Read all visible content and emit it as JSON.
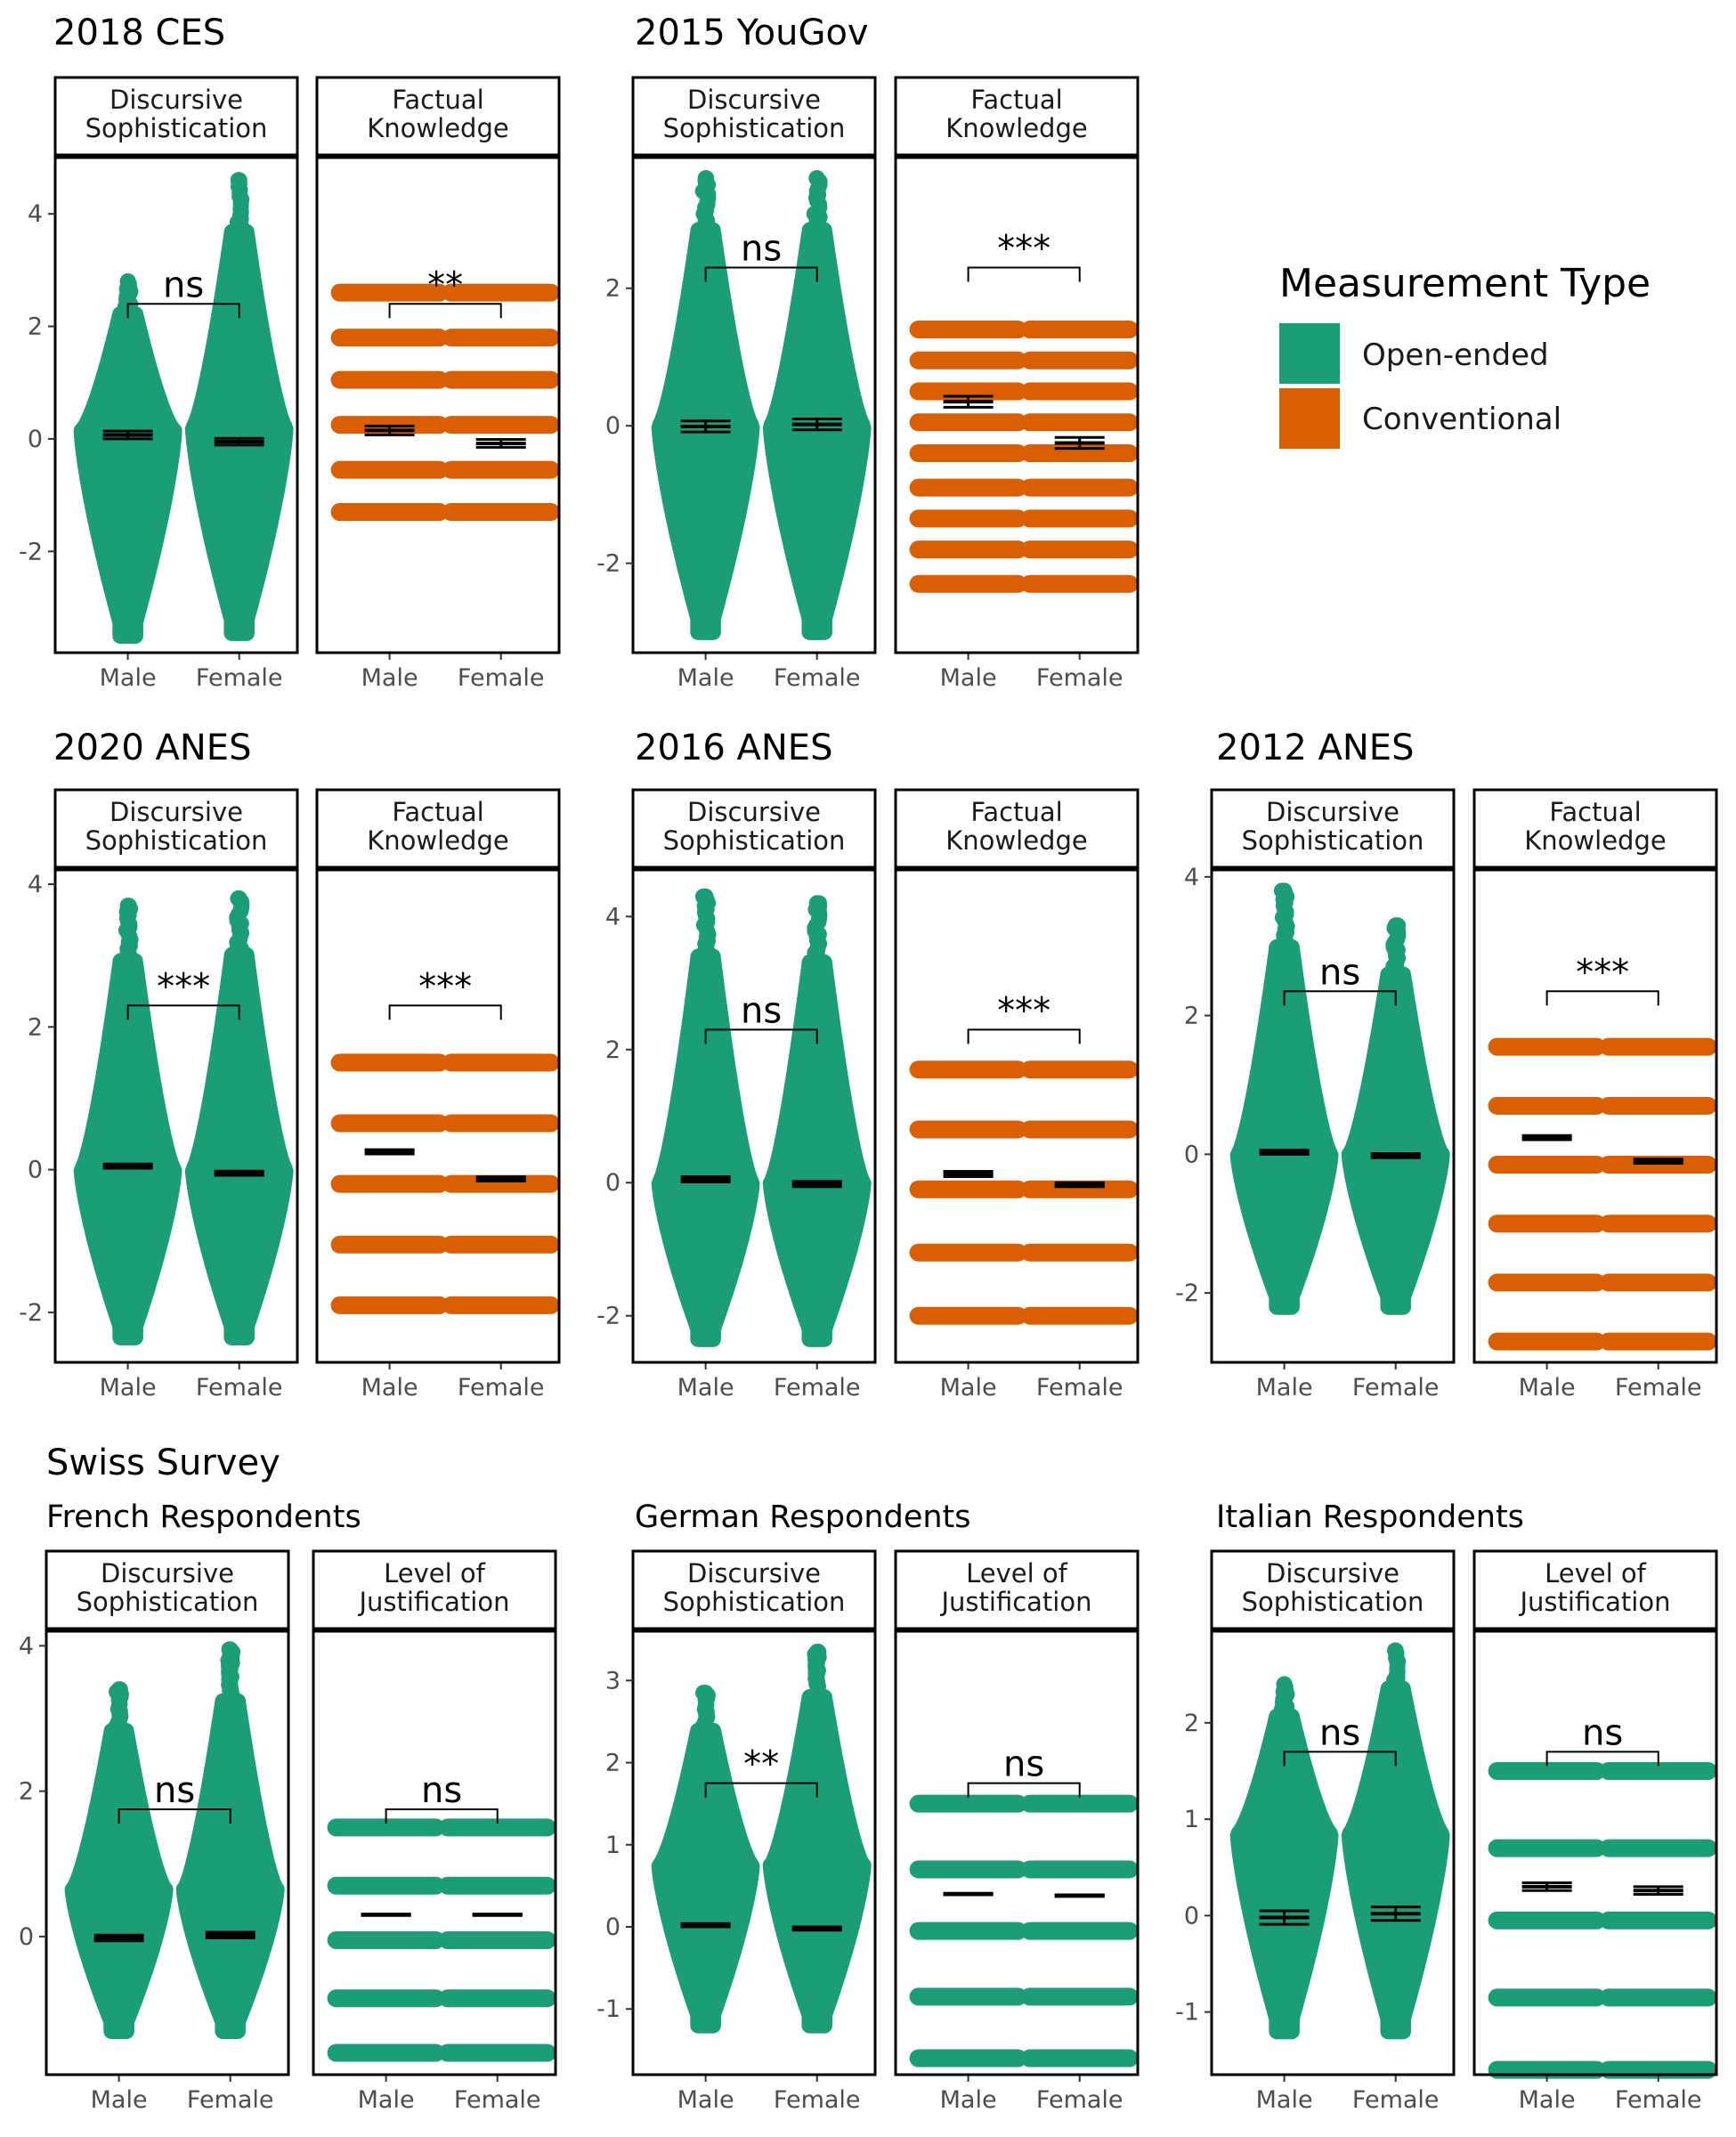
{
  "titles": {
    "ces2018": "2018 CES",
    "yougov2015": "2015 YouGov",
    "anes2020": "2020 ANES",
    "anes2016": "2016 ANES",
    "anes2012": "2012 ANES",
    "swiss": "Swiss Survey",
    "french": "French Respondents",
    "german": "German Respondents",
    "italian": "Italian Respondents"
  },
  "legend": {
    "title": "Measurement Type",
    "items": [
      {
        "label": "Open-ended",
        "color": "#1b9e77"
      },
      {
        "label": "Conventional",
        "color": "#d95f02"
      }
    ]
  },
  "chart_data": [
    {
      "id": "ces2018",
      "type": "scatter",
      "subtype": "beeswarm",
      "group": "2018 CES",
      "ylim": [
        -3.8,
        5.0
      ],
      "yticks": [
        -2,
        0,
        2,
        4
      ],
      "panels": [
        {
          "strip": [
            "Discursive",
            "Sophistication"
          ],
          "color": "#1b9e77",
          "discrete": false,
          "categories": [
            "Male",
            "Female"
          ],
          "min": [
            -3.5,
            -3.45
          ],
          "max": [
            2.8,
            4.6
          ],
          "center": [
            0.15,
            0.2
          ],
          "means": [
            0.07,
            -0.05
          ],
          "se": [
            0.07,
            0.06
          ],
          "sig": "ns",
          "bracket_y": 2.4
        },
        {
          "strip": [
            "Factual",
            "Knowledge"
          ],
          "color": "#d95f02",
          "discrete": true,
          "categories": [
            "Male",
            "Female"
          ],
          "levels": [
            [
              -1.3,
              -0.55,
              0.25,
              1.05,
              1.8,
              2.6
            ],
            [
              -1.3,
              -0.55,
              0.25,
              1.05,
              1.8,
              2.6
            ]
          ],
          "means": [
            0.15,
            -0.08
          ],
          "se": [
            0.08,
            0.07
          ],
          "sig": "**",
          "bracket_y": 2.4
        }
      ]
    },
    {
      "id": "yougov2015",
      "type": "scatter",
      "subtype": "beeswarm",
      "group": "2015 YouGov",
      "ylim": [
        -3.3,
        3.9
      ],
      "yticks": [
        -2,
        0,
        2
      ],
      "panels": [
        {
          "strip": [
            "Discursive",
            "Sophistication"
          ],
          "color": "#1b9e77",
          "discrete": false,
          "categories": [
            "Male",
            "Female"
          ],
          "min": [
            -3.0,
            -3.0
          ],
          "max": [
            3.6,
            3.6
          ],
          "center": [
            0.0,
            0.0
          ],
          "means": [
            -0.01,
            0.02
          ],
          "se": [
            0.08,
            0.08
          ],
          "sig": "ns",
          "bracket_y": 2.3
        },
        {
          "strip": [
            "Factual",
            "Knowledge"
          ],
          "color": "#d95f02",
          "discrete": true,
          "categories": [
            "Male",
            "Female"
          ],
          "levels": [
            [
              -2.3,
              -1.8,
              -1.35,
              -0.9,
              -0.4,
              0.05,
              0.5,
              0.95,
              1.4
            ],
            [
              -2.3,
              -1.8,
              -1.35,
              -0.9,
              -0.4,
              0.05,
              0.5,
              0.95,
              1.4
            ]
          ],
          "means": [
            0.35,
            -0.25
          ],
          "se": [
            0.08,
            0.08
          ],
          "sig": "***",
          "bracket_y": 2.3
        }
      ]
    },
    {
      "id": "anes2020",
      "type": "scatter",
      "subtype": "beeswarm",
      "group": "2020 ANES",
      "ylim": [
        -2.7,
        4.2
      ],
      "yticks": [
        -2,
        0,
        2,
        4
      ],
      "panels": [
        {
          "strip": [
            "Discursive",
            "Sophistication"
          ],
          "color": "#1b9e77",
          "discrete": false,
          "categories": [
            "Male",
            "Female"
          ],
          "min": [
            -2.35,
            -2.35
          ],
          "max": [
            3.7,
            3.8
          ],
          "center": [
            0.0,
            0.0
          ],
          "means": [
            0.05,
            -0.05
          ],
          "se": [
            0.03,
            0.03
          ],
          "sig": "***",
          "bracket_y": 2.3
        },
        {
          "strip": [
            "Factual",
            "Knowledge"
          ],
          "color": "#d95f02",
          "discrete": true,
          "categories": [
            "Male",
            "Female"
          ],
          "levels": [
            [
              -1.9,
              -1.05,
              -0.2,
              0.65,
              1.5
            ],
            [
              -1.9,
              -1.05,
              -0.2,
              0.65,
              1.5
            ]
          ],
          "means": [
            0.25,
            -0.13
          ],
          "se": [
            0.03,
            0.03
          ],
          "sig": "***",
          "bracket_y": 2.3
        }
      ]
    },
    {
      "id": "anes2016",
      "type": "scatter",
      "subtype": "beeswarm",
      "group": "2016 ANES",
      "ylim": [
        -2.7,
        4.7
      ],
      "yticks": [
        -2,
        0,
        2,
        4
      ],
      "panels": [
        {
          "strip": [
            "Discursive",
            "Sophistication"
          ],
          "color": "#1b9e77",
          "discrete": false,
          "categories": [
            "Male",
            "Female"
          ],
          "min": [
            -2.35,
            -2.35
          ],
          "max": [
            4.3,
            4.2
          ],
          "center": [
            0.0,
            0.0
          ],
          "means": [
            0.05,
            -0.02
          ],
          "se": [
            0.04,
            0.04
          ],
          "sig": "ns",
          "bracket_y": 2.3
        },
        {
          "strip": [
            "Factual",
            "Knowledge"
          ],
          "color": "#d95f02",
          "discrete": true,
          "categories": [
            "Male",
            "Female"
          ],
          "levels": [
            [
              -2.0,
              -1.05,
              -0.1,
              0.8,
              1.7
            ],
            [
              -2.0,
              -1.05,
              -0.1,
              0.8,
              1.7
            ]
          ],
          "means": [
            0.13,
            -0.03
          ],
          "se": [
            0.04,
            0.03
          ],
          "sig": "***",
          "bracket_y": 2.3
        }
      ]
    },
    {
      "id": "anes2012",
      "type": "scatter",
      "subtype": "beeswarm",
      "group": "2012 ANES",
      "ylim": [
        -3.0,
        4.1
      ],
      "yticks": [
        -2,
        0,
        2,
        4
      ],
      "panels": [
        {
          "strip": [
            "Discursive",
            "Sophistication"
          ],
          "color": "#1b9e77",
          "discrete": false,
          "categories": [
            "Male",
            "Female"
          ],
          "min": [
            -2.2,
            -2.2
          ],
          "max": [
            3.8,
            3.3
          ],
          "center": [
            0.0,
            0.0
          ],
          "means": [
            0.03,
            -0.02
          ],
          "se": [
            0.03,
            0.03
          ],
          "sig": "ns",
          "bracket_y": 2.35
        },
        {
          "strip": [
            "Factual",
            "Knowledge"
          ],
          "color": "#d95f02",
          "discrete": true,
          "categories": [
            "Male",
            "Female"
          ],
          "levels": [
            [
              -2.7,
              -1.85,
              -1.0,
              -0.15,
              0.7,
              1.55
            ],
            [
              -2.7,
              -1.85,
              -1.0,
              -0.15,
              0.7,
              1.55
            ]
          ],
          "means": [
            0.24,
            -0.1
          ],
          "se": [
            0.03,
            0.03
          ],
          "sig": "***",
          "bracket_y": 2.35
        }
      ]
    },
    {
      "id": "french",
      "type": "scatter",
      "subtype": "beeswarm",
      "group": "Swiss Survey",
      "subgroup": "French Respondents",
      "ylim": [
        -1.9,
        4.2
      ],
      "yticks": [
        0,
        2,
        4
      ],
      "panels": [
        {
          "strip": [
            "Discursive",
            "Sophistication"
          ],
          "color": "#1b9e77",
          "discrete": false,
          "categories": [
            "Male",
            "Female"
          ],
          "min": [
            -1.3,
            -1.3
          ],
          "max": [
            3.4,
            3.95
          ],
          "center": [
            0.65,
            0.65
          ],
          "means": [
            -0.02,
            0.02
          ],
          "se": [
            0.04,
            0.04
          ],
          "sig": "ns",
          "bracket_y": 1.75
        },
        {
          "strip": [
            "Level of",
            "Justification"
          ],
          "color": "#1b9e77",
          "discrete": true,
          "categories": [
            "Male",
            "Female"
          ],
          "levels": [
            [
              -1.6,
              -0.85,
              -0.05,
              0.7,
              1.5
            ],
            [
              -1.6,
              -0.85,
              -0.05,
              0.7,
              1.5
            ]
          ],
          "means": [
            0.3,
            0.3
          ],
          "se": [
            0.01,
            0.01
          ],
          "sig": "ns",
          "bracket_y": 1.75
        }
      ]
    },
    {
      "id": "german",
      "type": "scatter",
      "subtype": "beeswarm",
      "group": "Swiss Survey",
      "subgroup": "German Respondents",
      "ylim": [
        -1.8,
        3.6
      ],
      "yticks": [
        -1,
        0,
        1,
        2,
        3
      ],
      "panels": [
        {
          "strip": [
            "Discursive",
            "Sophistication"
          ],
          "color": "#1b9e77",
          "discrete": false,
          "categories": [
            "Male",
            "Female"
          ],
          "min": [
            -1.2,
            -1.2
          ],
          "max": [
            2.85,
            3.35
          ],
          "center": [
            0.75,
            0.75
          ],
          "means": [
            0.02,
            -0.02
          ],
          "se": [
            0.02,
            0.02
          ],
          "sig": "**",
          "bracket_y": 1.75
        },
        {
          "strip": [
            "Level of",
            "Justification"
          ],
          "color": "#1b9e77",
          "discrete": true,
          "categories": [
            "Male",
            "Female"
          ],
          "levels": [
            [
              -1.6,
              -0.85,
              -0.05,
              0.7,
              1.5
            ],
            [
              -1.6,
              -0.85,
              -0.05,
              0.7,
              1.5
            ]
          ],
          "means": [
            0.4,
            0.38
          ],
          "se": [
            0.01,
            0.01
          ],
          "sig": "ns",
          "bracket_y": 1.75
        }
      ]
    },
    {
      "id": "italian",
      "type": "scatter",
      "subtype": "beeswarm",
      "group": "Swiss Survey",
      "subgroup": "Italian Respondents",
      "ylim": [
        -1.65,
        2.95
      ],
      "yticks": [
        -1,
        0,
        1,
        2
      ],
      "panels": [
        {
          "strip": [
            "Discursive",
            "Sophistication"
          ],
          "color": "#1b9e77",
          "discrete": false,
          "categories": [
            "Male",
            "Female"
          ],
          "min": [
            -1.2,
            -1.2
          ],
          "max": [
            2.4,
            2.75
          ],
          "center": [
            0.85,
            0.85
          ],
          "means": [
            -0.02,
            0.02
          ],
          "se": [
            0.07,
            0.07
          ],
          "sig": "ns",
          "bracket_y": 1.7
        },
        {
          "strip": [
            "Level of",
            "Justification"
          ],
          "color": "#1b9e77",
          "discrete": true,
          "categories": [
            "Male",
            "Female"
          ],
          "levels": [
            [
              -1.6,
              -0.85,
              -0.05,
              0.7,
              1.5
            ],
            [
              -1.6,
              -0.85,
              -0.05,
              0.7,
              1.5
            ]
          ],
          "means": [
            0.3,
            0.26
          ],
          "se": [
            0.04,
            0.04
          ],
          "sig": "ns",
          "bracket_y": 1.7
        }
      ]
    }
  ]
}
